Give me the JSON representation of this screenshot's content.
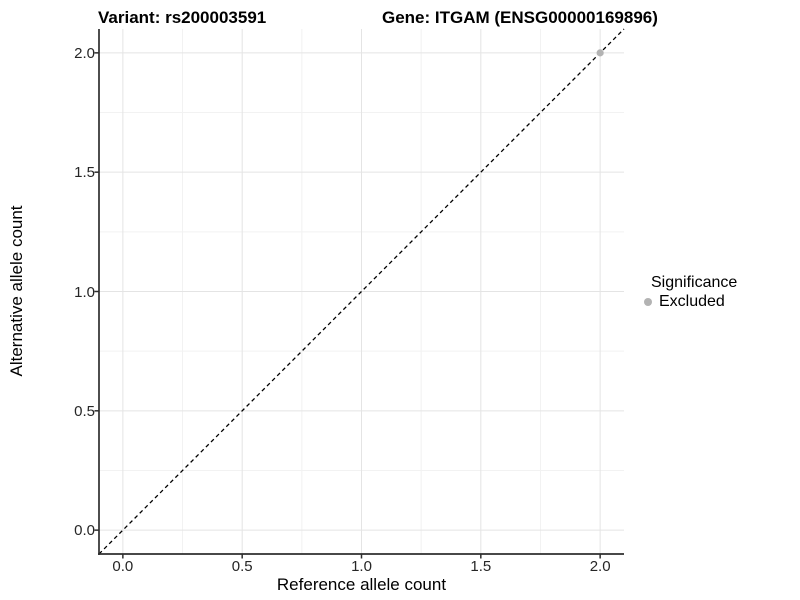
{
  "chart_data": {
    "type": "scatter",
    "title_left": "Variant: rs200003591",
    "title_right": "Gene: ITGAM (ENSG00000169896)",
    "xlabel": "Reference allele count",
    "ylabel": "Alternative allele count",
    "xlim": [
      -0.1,
      2.1
    ],
    "ylim": [
      -0.1,
      2.1
    ],
    "x_ticks": [
      0.0,
      0.5,
      1.0,
      1.5,
      2.0
    ],
    "y_ticks": [
      0.0,
      0.5,
      1.0,
      1.5,
      2.0
    ],
    "x_minor_ticks": [
      0.25,
      0.75,
      1.25,
      1.75
    ],
    "y_minor_ticks": [
      0.25,
      0.75,
      1.25,
      1.75
    ],
    "tick_format_decimals": 1,
    "grid": "major+minor",
    "reference_line": {
      "kind": "identity y=x",
      "style": "dashed",
      "color": "#000000"
    },
    "series": [
      {
        "name": "Excluded",
        "color": "#b3b3b3",
        "points": [
          {
            "x": 2.0,
            "y": 2.0
          }
        ]
      }
    ],
    "legend": {
      "title": "Significance",
      "position": "right",
      "items": [
        {
          "label": "Excluded",
          "color": "#b3b3b3",
          "marker": "circle"
        }
      ]
    },
    "colors": {
      "background": "#ffffff",
      "grid_major": "#e4e4e4",
      "grid_minor": "#f2f2f2",
      "axis_line": "#2e2e2e",
      "tick_label": "#262626",
      "title": "#000000"
    }
  }
}
